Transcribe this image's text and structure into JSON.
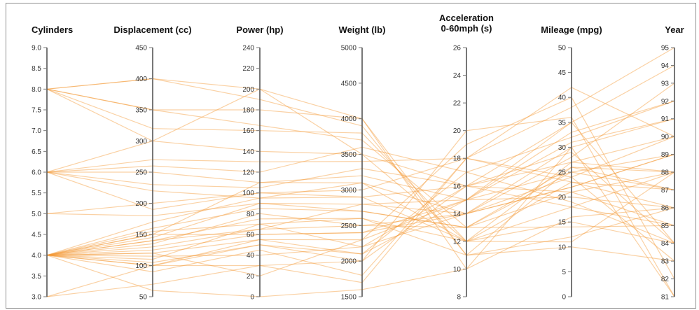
{
  "chart_data": {
    "type": "parallel_coordinates",
    "title": "",
    "colors": {
      "line": "#f39a36",
      "axis": "#555555",
      "text": "#111111"
    },
    "axes": [
      {
        "key": "cyl",
        "label": [
          "Cylinders"
        ],
        "range": [
          3,
          9
        ],
        "ticks": [
          "3.0",
          "3.5",
          "4.0",
          "4.5",
          "5.0",
          "5.5",
          "6.0",
          "6.5",
          "7.0",
          "7.5",
          "8.0",
          "8.5",
          "9.0"
        ]
      },
      {
        "key": "disp",
        "label": [
          "Displacement (cc)"
        ],
        "range": [
          50,
          450
        ],
        "ticks": [
          "50",
          "100",
          "150",
          "200",
          "250",
          "300",
          "350",
          "400",
          "450"
        ]
      },
      {
        "key": "hp",
        "label": [
          "Power (hp)"
        ],
        "range": [
          0,
          240
        ],
        "ticks": [
          "0",
          "20",
          "40",
          "60",
          "80",
          "100",
          "120",
          "140",
          "160",
          "180",
          "200",
          "220",
          "240"
        ]
      },
      {
        "key": "wt",
        "label": [
          "Weight (lb)"
        ],
        "range": [
          1500,
          5000
        ],
        "ticks": [
          "1500",
          "2000",
          "2500",
          "3000",
          "3500",
          "4000",
          "4500",
          "5000"
        ]
      },
      {
        "key": "acc",
        "label": [
          "Acceleration",
          "0-60mph (s)"
        ],
        "range": [
          8,
          26
        ],
        "ticks": [
          "8",
          "10",
          "12",
          "14",
          "16",
          "18",
          "20",
          "22",
          "24",
          "26"
        ]
      },
      {
        "key": "mpg",
        "label": [
          "Mileage (mpg)"
        ],
        "range": [
          0,
          50
        ],
        "ticks": [
          "0",
          "5",
          "10",
          "15",
          "20",
          "25",
          "30",
          "35",
          "40",
          "45",
          "50"
        ]
      },
      {
        "key": "year",
        "label": [
          "Year"
        ],
        "range": [
          81,
          95
        ],
        "ticks": [
          "81",
          "82",
          "83",
          "84",
          "85",
          "86",
          "87",
          "88",
          "89",
          "90",
          "91",
          "92",
          "93",
          "94",
          "95"
        ]
      }
    ],
    "records": [
      [
        8,
        400,
        200,
        3500,
        12,
        11,
        88
      ],
      [
        8,
        350,
        180,
        4000,
        11,
        12,
        86
      ],
      [
        8,
        320,
        160,
        3800,
        12,
        15,
        84
      ],
      [
        8,
        350,
        165,
        3700,
        13,
        14,
        85
      ],
      [
        8,
        400,
        190,
        3900,
        11,
        10,
        83
      ],
      [
        8,
        300,
        200,
        4000,
        10,
        16,
        86
      ],
      [
        6,
        250,
        110,
        3200,
        15,
        20,
        86
      ],
      [
        6,
        230,
        105,
        3300,
        16,
        21,
        88
      ],
      [
        6,
        260,
        120,
        3600,
        17,
        19,
        84
      ],
      [
        6,
        220,
        95,
        3100,
        14,
        22,
        89
      ],
      [
        6,
        300,
        140,
        3500,
        16,
        18,
        85
      ],
      [
        6,
        270,
        130,
        3400,
        18,
        23,
        87
      ],
      [
        6,
        190,
        100,
        3000,
        18,
        24,
        90
      ],
      [
        5,
        180,
        90,
        2800,
        15,
        25,
        87
      ],
      [
        5,
        200,
        100,
        2900,
        16,
        27,
        88
      ],
      [
        4,
        150,
        60,
        2400,
        14,
        30,
        91
      ],
      [
        4,
        120,
        55,
        2300,
        15,
        33,
        92
      ],
      [
        4,
        100,
        50,
        2000,
        16,
        35,
        94
      ],
      [
        4,
        110,
        70,
        2200,
        14,
        28,
        93
      ],
      [
        4,
        130,
        65,
        2500,
        13,
        25,
        89
      ],
      [
        4,
        140,
        75,
        2600,
        12,
        27,
        90
      ],
      [
        4,
        90,
        45,
        1800,
        18,
        38,
        95
      ],
      [
        4,
        160,
        85,
        2700,
        13,
        26,
        88
      ],
      [
        4,
        170,
        95,
        2900,
        12,
        23,
        86
      ],
      [
        4,
        125,
        60,
        2400,
        15,
        31,
        91
      ],
      [
        4,
        115,
        40,
        2200,
        16,
        29,
        84
      ],
      [
        4,
        135,
        80,
        2500,
        14,
        24,
        83
      ],
      [
        4,
        145,
        90,
        2700,
        13,
        21,
        85
      ],
      [
        4,
        105,
        50,
        2100,
        17,
        32,
        92
      ],
      [
        4,
        155,
        70,
        2600,
        11,
        26,
        87
      ],
      [
        4,
        120,
        20,
        2300,
        19,
        40,
        82
      ],
      [
        4,
        100,
        30,
        2000,
        20,
        36,
        81
      ],
      [
        4,
        140,
        65,
        2800,
        14,
        22,
        89
      ],
      [
        4,
        150,
        110,
        3100,
        12,
        18,
        88
      ],
      [
        4,
        60,
        0,
        1600,
        10,
        30,
        81
      ],
      [
        3,
        70,
        30,
        1700,
        18,
        42,
        90
      ],
      [
        3,
        100,
        55,
        2100,
        15,
        35,
        84
      ]
    ]
  }
}
